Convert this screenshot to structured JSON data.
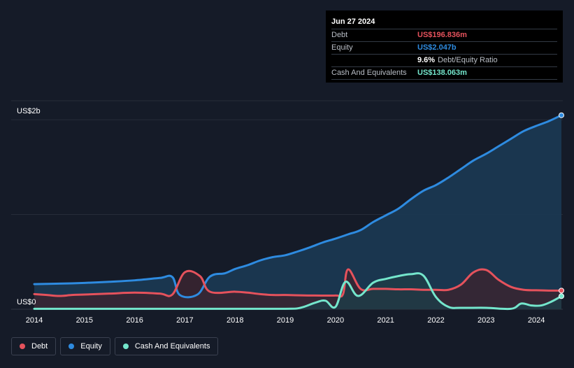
{
  "tooltip": {
    "date": "Jun 27 2024",
    "rows": [
      {
        "label": "Debt",
        "value": "US$196.836m",
        "color": "#e5525c"
      },
      {
        "label": "Equity",
        "value": "US$2.047b",
        "color": "#2e8be0"
      },
      {
        "label": "",
        "value": "9.6%",
        "extra": "Debt/Equity Ratio",
        "color": "#ffffff"
      },
      {
        "label": "Cash And Equivalents",
        "value": "US$138.063m",
        "color": "#74e6cc"
      }
    ]
  },
  "legend": [
    {
      "label": "Debt",
      "color": "#e5525c"
    },
    {
      "label": "Equity",
      "color": "#2e8be0"
    },
    {
      "label": "Cash And Equivalents",
      "color": "#74e6cc"
    }
  ],
  "chart_data": {
    "type": "area",
    "title": "",
    "xlabel": "",
    "ylabel": "",
    "y_unit": "US$ millions",
    "ylim": [
      0,
      2200
    ],
    "xlim": [
      2014,
      2024.5
    ],
    "y_tick_labels": [
      {
        "value": 2000,
        "label": "US$2b"
      },
      {
        "value": 0,
        "label": "US$0"
      }
    ],
    "gridlines": [
      0,
      1000,
      2000,
      2200
    ],
    "x_ticks": [
      {
        "value": 2014,
        "label": "2014"
      },
      {
        "value": 2015,
        "label": "2015"
      },
      {
        "value": 2016,
        "label": "2016"
      },
      {
        "value": 2017,
        "label": "2017"
      },
      {
        "value": 2018,
        "label": "2018"
      },
      {
        "value": 2019,
        "label": "2019"
      },
      {
        "value": 2020,
        "label": "2020"
      },
      {
        "value": 2021,
        "label": "2021"
      },
      {
        "value": 2022,
        "label": "2022"
      },
      {
        "value": 2023,
        "label": "2023"
      },
      {
        "value": 2024,
        "label": "2024"
      }
    ],
    "series": [
      {
        "name": "Equity",
        "color": "#2e8be0",
        "fill": "#1b3b56",
        "points": [
          [
            2014,
            265
          ],
          [
            2014.5,
            270
          ],
          [
            2015,
            278
          ],
          [
            2015.5,
            290
          ],
          [
            2016,
            305
          ],
          [
            2016.5,
            330
          ],
          [
            2016.75,
            340
          ],
          [
            2016.9,
            150
          ],
          [
            2017.25,
            155
          ],
          [
            2017.5,
            345
          ],
          [
            2017.8,
            380
          ],
          [
            2018,
            425
          ],
          [
            2018.25,
            465
          ],
          [
            2018.5,
            515
          ],
          [
            2018.75,
            550
          ],
          [
            2019,
            570
          ],
          [
            2019.25,
            610
          ],
          [
            2019.5,
            655
          ],
          [
            2019.75,
            705
          ],
          [
            2020,
            745
          ],
          [
            2020.25,
            790
          ],
          [
            2020.5,
            835
          ],
          [
            2020.75,
            920
          ],
          [
            2021,
            990
          ],
          [
            2021.25,
            1060
          ],
          [
            2021.5,
            1160
          ],
          [
            2021.75,
            1250
          ],
          [
            2022,
            1310
          ],
          [
            2022.25,
            1390
          ],
          [
            2022.5,
            1480
          ],
          [
            2022.75,
            1570
          ],
          [
            2023,
            1640
          ],
          [
            2023.25,
            1720
          ],
          [
            2023.5,
            1800
          ],
          [
            2023.75,
            1880
          ],
          [
            2024,
            1935
          ],
          [
            2024.25,
            1985
          ],
          [
            2024.5,
            2047
          ]
        ]
      },
      {
        "name": "Debt",
        "color": "#e5525c",
        "fill": "#3a2530",
        "points": [
          [
            2014,
            160
          ],
          [
            2014.25,
            150
          ],
          [
            2014.5,
            140
          ],
          [
            2014.75,
            150
          ],
          [
            2015,
            155
          ],
          [
            2015.5,
            165
          ],
          [
            2016,
            175
          ],
          [
            2016.5,
            165
          ],
          [
            2016.75,
            155
          ],
          [
            2017,
            390
          ],
          [
            2017.3,
            350
          ],
          [
            2017.5,
            185
          ],
          [
            2018,
            185
          ],
          [
            2018.25,
            175
          ],
          [
            2018.5,
            160
          ],
          [
            2018.75,
            150
          ],
          [
            2019,
            150
          ],
          [
            2019.5,
            145
          ],
          [
            2020,
            145
          ],
          [
            2020.15,
            160
          ],
          [
            2020.25,
            420
          ],
          [
            2020.5,
            215
          ],
          [
            2020.75,
            215
          ],
          [
            2021,
            215
          ],
          [
            2021.25,
            210
          ],
          [
            2021.5,
            210
          ],
          [
            2021.75,
            205
          ],
          [
            2022,
            205
          ],
          [
            2022.25,
            205
          ],
          [
            2022.5,
            260
          ],
          [
            2022.75,
            390
          ],
          [
            2023,
            415
          ],
          [
            2023.25,
            310
          ],
          [
            2023.5,
            235
          ],
          [
            2023.75,
            205
          ],
          [
            2024,
            200
          ],
          [
            2024.25,
            197
          ],
          [
            2024.5,
            197
          ]
        ]
      },
      {
        "name": "Cash And Equivalents",
        "color": "#74e6cc",
        "fill": "#1f3c46",
        "points": [
          [
            2014,
            5
          ],
          [
            2015,
            5
          ],
          [
            2016,
            5
          ],
          [
            2017,
            5
          ],
          [
            2018,
            5
          ],
          [
            2019,
            5
          ],
          [
            2019.3,
            15
          ],
          [
            2019.6,
            70
          ],
          [
            2019.8,
            90
          ],
          [
            2020,
            25
          ],
          [
            2020.2,
            290
          ],
          [
            2020.45,
            140
          ],
          [
            2020.75,
            280
          ],
          [
            2021,
            320
          ],
          [
            2021.25,
            350
          ],
          [
            2021.5,
            370
          ],
          [
            2021.75,
            355
          ],
          [
            2022,
            130
          ],
          [
            2022.25,
            25
          ],
          [
            2022.5,
            15
          ],
          [
            2023,
            15
          ],
          [
            2023.5,
            5
          ],
          [
            2023.7,
            60
          ],
          [
            2023.9,
            40
          ],
          [
            2024.1,
            40
          ],
          [
            2024.3,
            80
          ],
          [
            2024.5,
            138
          ]
        ]
      }
    ]
  }
}
